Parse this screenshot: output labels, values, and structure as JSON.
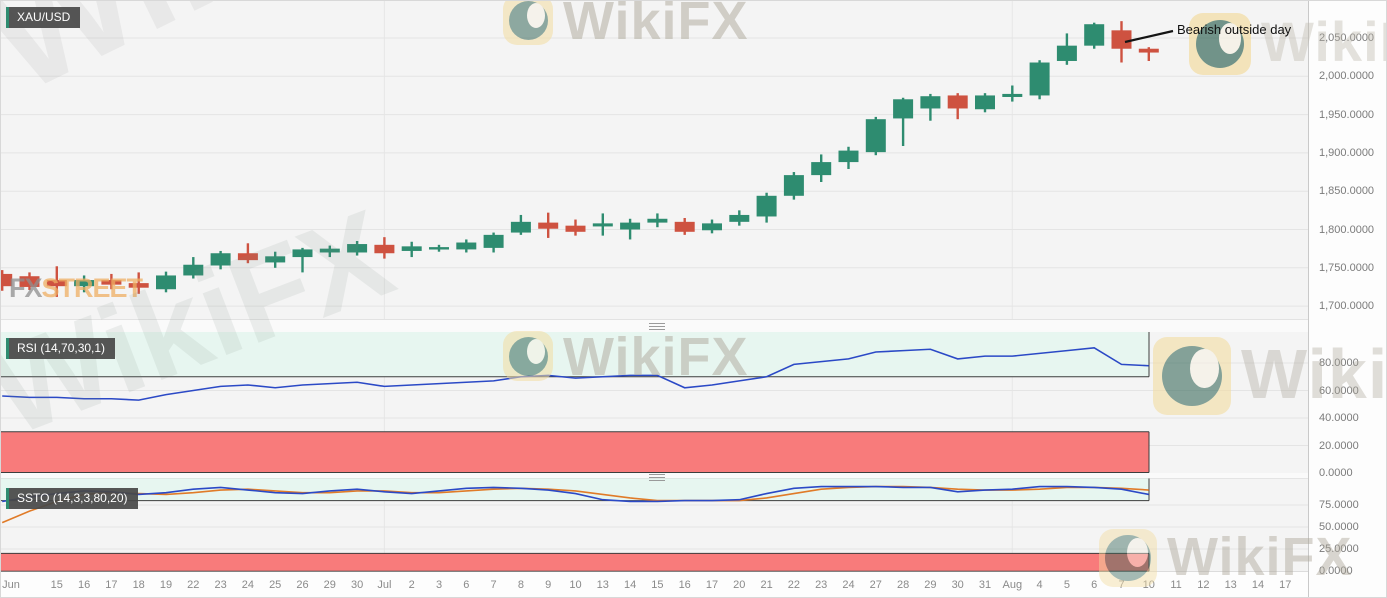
{
  "watermark": {
    "brand": "WikiFX"
  },
  "fxstreet_logo": {
    "fx": "FX",
    "street": "STREET"
  },
  "symbol": {
    "label": "XAU/USD"
  },
  "indicators": {
    "rsi_label": "RSI (14,70,30,1)",
    "ssto_label": "SSTO (14,3,3,80,20)"
  },
  "annotation": {
    "text": "Bearish outside day",
    "points_to": "Aug 7"
  },
  "price_axis": {
    "labels": [
      "2,050.0000",
      "2,000.0000",
      "1,950.0000",
      "1,900.0000",
      "1,850.0000",
      "1,800.0000",
      "1,750.0000",
      "1,700.0000"
    ],
    "values": [
      2050,
      2000,
      1950,
      1900,
      1850,
      1800,
      1750,
      1700
    ]
  },
  "rsi_axis": {
    "labels": [
      "80.0000",
      "60.0000",
      "40.0000",
      "20.0000",
      "0.0000"
    ],
    "values": [
      80,
      60,
      40,
      20,
      0
    ]
  },
  "ssto_axis": {
    "labels": [
      "75.0000",
      "50.0000",
      "25.0000",
      "0.0000"
    ],
    "values": [
      75,
      50,
      25,
      0
    ]
  },
  "time_axis": {
    "labels": [
      "Jun",
      "15",
      "16",
      "17",
      "18",
      "19",
      "22",
      "23",
      "24",
      "25",
      "26",
      "29",
      "30",
      "Jul",
      "2",
      "3",
      "6",
      "7",
      "8",
      "9",
      "10",
      "13",
      "14",
      "15",
      "16",
      "17",
      "20",
      "21",
      "22",
      "23",
      "24",
      "27",
      "28",
      "29",
      "30",
      "31",
      "Aug",
      "4",
      "5",
      "6",
      "7",
      "10",
      "11",
      "12",
      "13",
      "14",
      "17"
    ]
  },
  "colors": {
    "up": "#2E8C70",
    "down": "#CE5240",
    "rsi_line": "#2B49C6",
    "k_line": "#2B49C6",
    "d_line": "#E07B28",
    "zone_red": "#F87B7B",
    "zone_cyan": "#E7F6F0",
    "zone_border": "#3d3d3d",
    "grid": "#e4e4e4",
    "accent": "#2E8C70",
    "annotation_line": "#141414"
  },
  "chart_data": [
    {
      "type": "candlestick",
      "title": "XAU/USD",
      "timeframe": "daily",
      "ylim": [
        1683,
        2098
      ],
      "categories": [
        "Jun 11",
        "Jun 12",
        "Jun 15",
        "Jun 16",
        "Jun 17",
        "Jun 18",
        "Jun 19",
        "Jun 22",
        "Jun 23",
        "Jun 24",
        "Jun 25",
        "Jun 26",
        "Jun 29",
        "Jun 30",
        "Jul 1",
        "Jul 2",
        "Jul 3",
        "Jul 6",
        "Jul 7",
        "Jul 8",
        "Jul 9",
        "Jul 10",
        "Jul 13",
        "Jul 14",
        "Jul 15",
        "Jul 16",
        "Jul 17",
        "Jul 20",
        "Jul 21",
        "Jul 22",
        "Jul 23",
        "Jul 24",
        "Jul 27",
        "Jul 28",
        "Jul 29",
        "Jul 30",
        "Jul 31",
        "Aug 3",
        "Aug 4",
        "Aug 5",
        "Aug 6",
        "Aug 7",
        "Aug 10"
      ],
      "open": [
        1742,
        1739,
        1734,
        1726,
        1734,
        1730,
        1722,
        1740,
        1753,
        1769,
        1757,
        1764,
        1770,
        1770,
        1780,
        1772,
        1775,
        1774,
        1776,
        1796,
        1809,
        1805,
        1804,
        1800,
        1809,
        1810,
        1799,
        1810,
        1817,
        1844,
        1871,
        1888,
        1901,
        1945,
        1958,
        1975,
        1957,
        1973,
        1975,
        2020,
        2040,
        2060,
        2036
      ],
      "high": [
        1747,
        1744,
        1752,
        1740,
        1742,
        1744,
        1745,
        1764,
        1772,
        1782,
        1771,
        1776,
        1779,
        1785,
        1790,
        1784,
        1780,
        1787,
        1796,
        1819,
        1822,
        1813,
        1821,
        1814,
        1821,
        1815,
        1813,
        1825,
        1848,
        1875,
        1898,
        1908,
        1947,
        1972,
        1977,
        1978,
        1978,
        1988,
        2021,
        2056,
        2070,
        2072,
        2038
      ],
      "low": [
        1720,
        1721,
        1712,
        1718,
        1722,
        1716,
        1718,
        1736,
        1748,
        1756,
        1750,
        1744,
        1764,
        1766,
        1762,
        1764,
        1771,
        1770,
        1770,
        1793,
        1789,
        1792,
        1792,
        1787,
        1803,
        1793,
        1795,
        1805,
        1809,
        1839,
        1862,
        1879,
        1897,
        1909,
        1942,
        1944,
        1953,
        1967,
        1970,
        2015,
        2036,
        2018,
        2020
      ],
      "close": [
        1726,
        1725,
        1726,
        1734,
        1728,
        1724,
        1740,
        1754,
        1769,
        1760,
        1765,
        1774,
        1775,
        1781,
        1769,
        1778,
        1777,
        1783,
        1793,
        1810,
        1801,
        1797,
        1808,
        1809,
        1814,
        1797,
        1808,
        1819,
        1844,
        1871,
        1888,
        1903,
        1944,
        1970,
        1974,
        1958,
        1975,
        1977,
        2018,
        2040,
        2068,
        2036,
        2031
      ],
      "annotations": [
        {
          "text": "Bearish outside day",
          "category": "Aug 7"
        }
      ]
    },
    {
      "type": "line",
      "name": "RSI (14,70,30,1)",
      "x": "shared categories with candlestick series",
      "values": [
        56,
        55,
        55,
        54,
        54,
        53,
        57,
        60,
        63,
        64,
        62,
        64,
        65,
        66,
        63,
        64,
        65,
        66,
        67,
        70,
        71,
        69,
        70,
        71,
        71,
        62,
        64,
        67,
        70,
        79,
        81,
        83,
        88,
        89,
        90,
        83,
        85,
        85,
        87,
        89,
        91,
        79,
        78
      ],
      "overbought_level": 70,
      "oversold_level": 30,
      "ylim": [
        0,
        100
      ]
    },
    {
      "type": "line",
      "name": "SSTO (14,3,3,80,20)",
      "x": "shared categories with candlestick series",
      "series": [
        {
          "name": "%K",
          "color": "#2B49C6",
          "values": [
            79,
            84,
            88,
            91,
            90,
            87,
            89,
            93,
            95,
            92,
            89,
            88,
            91,
            93,
            90,
            88,
            91,
            94,
            95,
            94,
            92,
            88,
            81,
            79,
            79,
            80,
            80,
            81,
            88,
            94,
            96,
            96,
            96,
            95,
            95,
            90,
            92,
            93,
            96,
            96,
            95,
            93,
            87
          ]
        },
        {
          "name": "%D",
          "color": "#E07B28",
          "values": [
            55,
            68,
            79,
            87,
            89,
            88,
            87,
            89,
            92,
            93,
            91,
            89,
            89,
            91,
            91,
            89,
            89,
            91,
            93,
            94,
            93,
            91,
            87,
            83,
            80,
            80,
            80,
            80,
            83,
            88,
            93,
            95,
            96,
            96,
            95,
            93,
            92,
            92,
            93,
            95,
            95,
            94,
            92
          ]
        }
      ],
      "upper_band": 80,
      "lower_band": 20,
      "ylim": [
        0,
        100
      ]
    }
  ]
}
